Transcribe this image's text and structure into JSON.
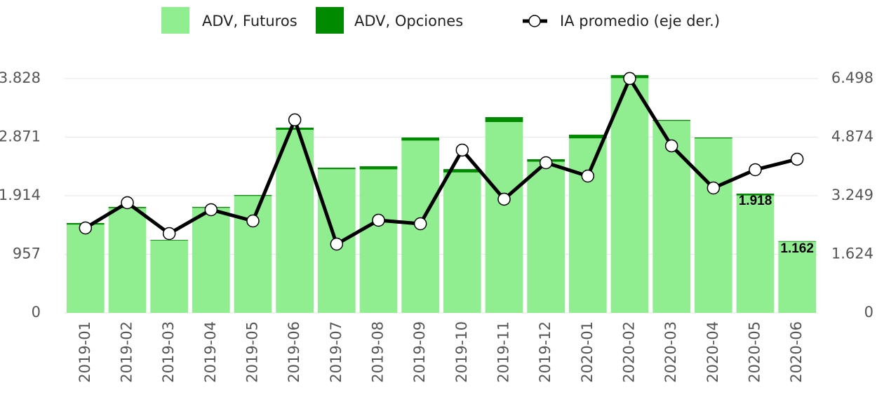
{
  "chart_data": {
    "type": "bar_line",
    "categories": [
      "2019-01",
      "2019-02",
      "2019-03",
      "2019-04",
      "2019-05",
      "2019-06",
      "2019-07",
      "2019-08",
      "2019-09",
      "2019-10",
      "2019-11",
      "2019-12",
      "2020-01",
      "2020-02",
      "2020-03",
      "2020-04",
      "2020-05",
      "2020-06"
    ],
    "series": [
      {
        "name": "ADV, Futuros",
        "color": "#90ee90",
        "stack": true,
        "values": [
          1442,
          1710,
          1182,
          1715,
          1910,
          2991,
          2347,
          2345,
          2815,
          2294,
          3118,
          2470,
          2851,
          3835,
          3137,
          2850,
          1918,
          1162
        ],
        "value_labels": [
          null,
          null,
          null,
          null,
          null,
          null,
          null,
          null,
          null,
          null,
          null,
          null,
          null,
          null,
          null,
          null,
          "1.918",
          "1.162"
        ]
      },
      {
        "name": "ADV, Opciones",
        "color": "#008a00",
        "stack": true,
        "values": [
          25,
          20,
          10,
          15,
          15,
          35,
          25,
          50,
          50,
          55,
          80,
          40,
          60,
          50,
          15,
          15,
          30,
          10
        ]
      },
      {
        "name": "IA promedio (eje der.)",
        "color": "#000000",
        "axis": "y2",
        "kind": "line",
        "values": [
          2355,
          3055,
          2199,
          2861,
          2549,
          5352,
          1907,
          2569,
          2471,
          4515,
          3153,
          4164,
          3795,
          6500,
          4632,
          3464,
          3970,
          4262
        ]
      }
    ],
    "ylim": [
      0,
      3950
    ],
    "yticks": [
      0,
      {
        "value": 957,
        "label": "957"
      },
      {
        "value": 1914,
        "label": "1.914"
      },
      {
        "value": 2871,
        "label": "2.871"
      },
      {
        "value": 3828,
        "label": "3.828"
      }
    ],
    "y2lim": [
      0,
      6705
    ],
    "y2ticks": [
      0,
      {
        "value": 1624,
        "label": "1.624"
      },
      {
        "value": 3249,
        "label": "3.249"
      },
      {
        "value": 4874,
        "label": "4.874"
      },
      {
        "value": 6498,
        "label": "6.498"
      }
    ],
    "grid": true,
    "legend": "top"
  }
}
